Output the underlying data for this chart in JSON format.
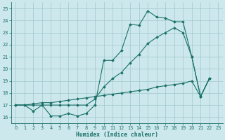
{
  "xlabel": "Humidex (Indice chaleur)",
  "bg_color": "#cce8ec",
  "grid_color": "#a0c8cc",
  "line_color": "#1a7068",
  "xlim": [
    -0.5,
    23.5
  ],
  "ylim": [
    15.5,
    25.5
  ],
  "xticks": [
    0,
    1,
    2,
    3,
    4,
    5,
    6,
    7,
    8,
    9,
    10,
    11,
    12,
    13,
    14,
    15,
    16,
    17,
    18,
    19,
    20,
    21,
    22,
    23
  ],
  "yticks": [
    16,
    17,
    18,
    19,
    20,
    21,
    22,
    23,
    24,
    25
  ],
  "line1_x": [
    0,
    1,
    2,
    3,
    4,
    5,
    6,
    7,
    8,
    9,
    10,
    11,
    12,
    13,
    14,
    15,
    16,
    17,
    18,
    19,
    20,
    21,
    22
  ],
  "line1_y": [
    17.0,
    17.0,
    16.5,
    17.0,
    16.1,
    16.1,
    16.3,
    16.1,
    16.3,
    17.0,
    20.7,
    20.7,
    21.5,
    23.7,
    23.6,
    24.8,
    24.3,
    24.2,
    23.9,
    23.9,
    21.0,
    17.7,
    19.2
  ],
  "line2_x": [
    0,
    1,
    2,
    3,
    4,
    5,
    6,
    7,
    8,
    9,
    10,
    11,
    12,
    13,
    14,
    15,
    16,
    17,
    18,
    19,
    20,
    21,
    22
  ],
  "line2_y": [
    17.0,
    17.0,
    17.0,
    17.0,
    17.0,
    17.0,
    17.0,
    17.0,
    17.0,
    17.5,
    18.5,
    19.2,
    19.7,
    20.5,
    21.2,
    22.1,
    22.6,
    23.0,
    23.4,
    23.0,
    21.0,
    17.7,
    19.2
  ],
  "line3_x": [
    0,
    1,
    2,
    3,
    4,
    5,
    6,
    7,
    8,
    9,
    10,
    11,
    12,
    13,
    14,
    15,
    16,
    17,
    18,
    19,
    20,
    21,
    22
  ],
  "line3_y": [
    17.0,
    17.0,
    17.1,
    17.2,
    17.2,
    17.3,
    17.4,
    17.5,
    17.6,
    17.7,
    17.8,
    17.9,
    18.0,
    18.1,
    18.2,
    18.3,
    18.5,
    18.6,
    18.7,
    18.8,
    19.0,
    17.7,
    19.2
  ]
}
